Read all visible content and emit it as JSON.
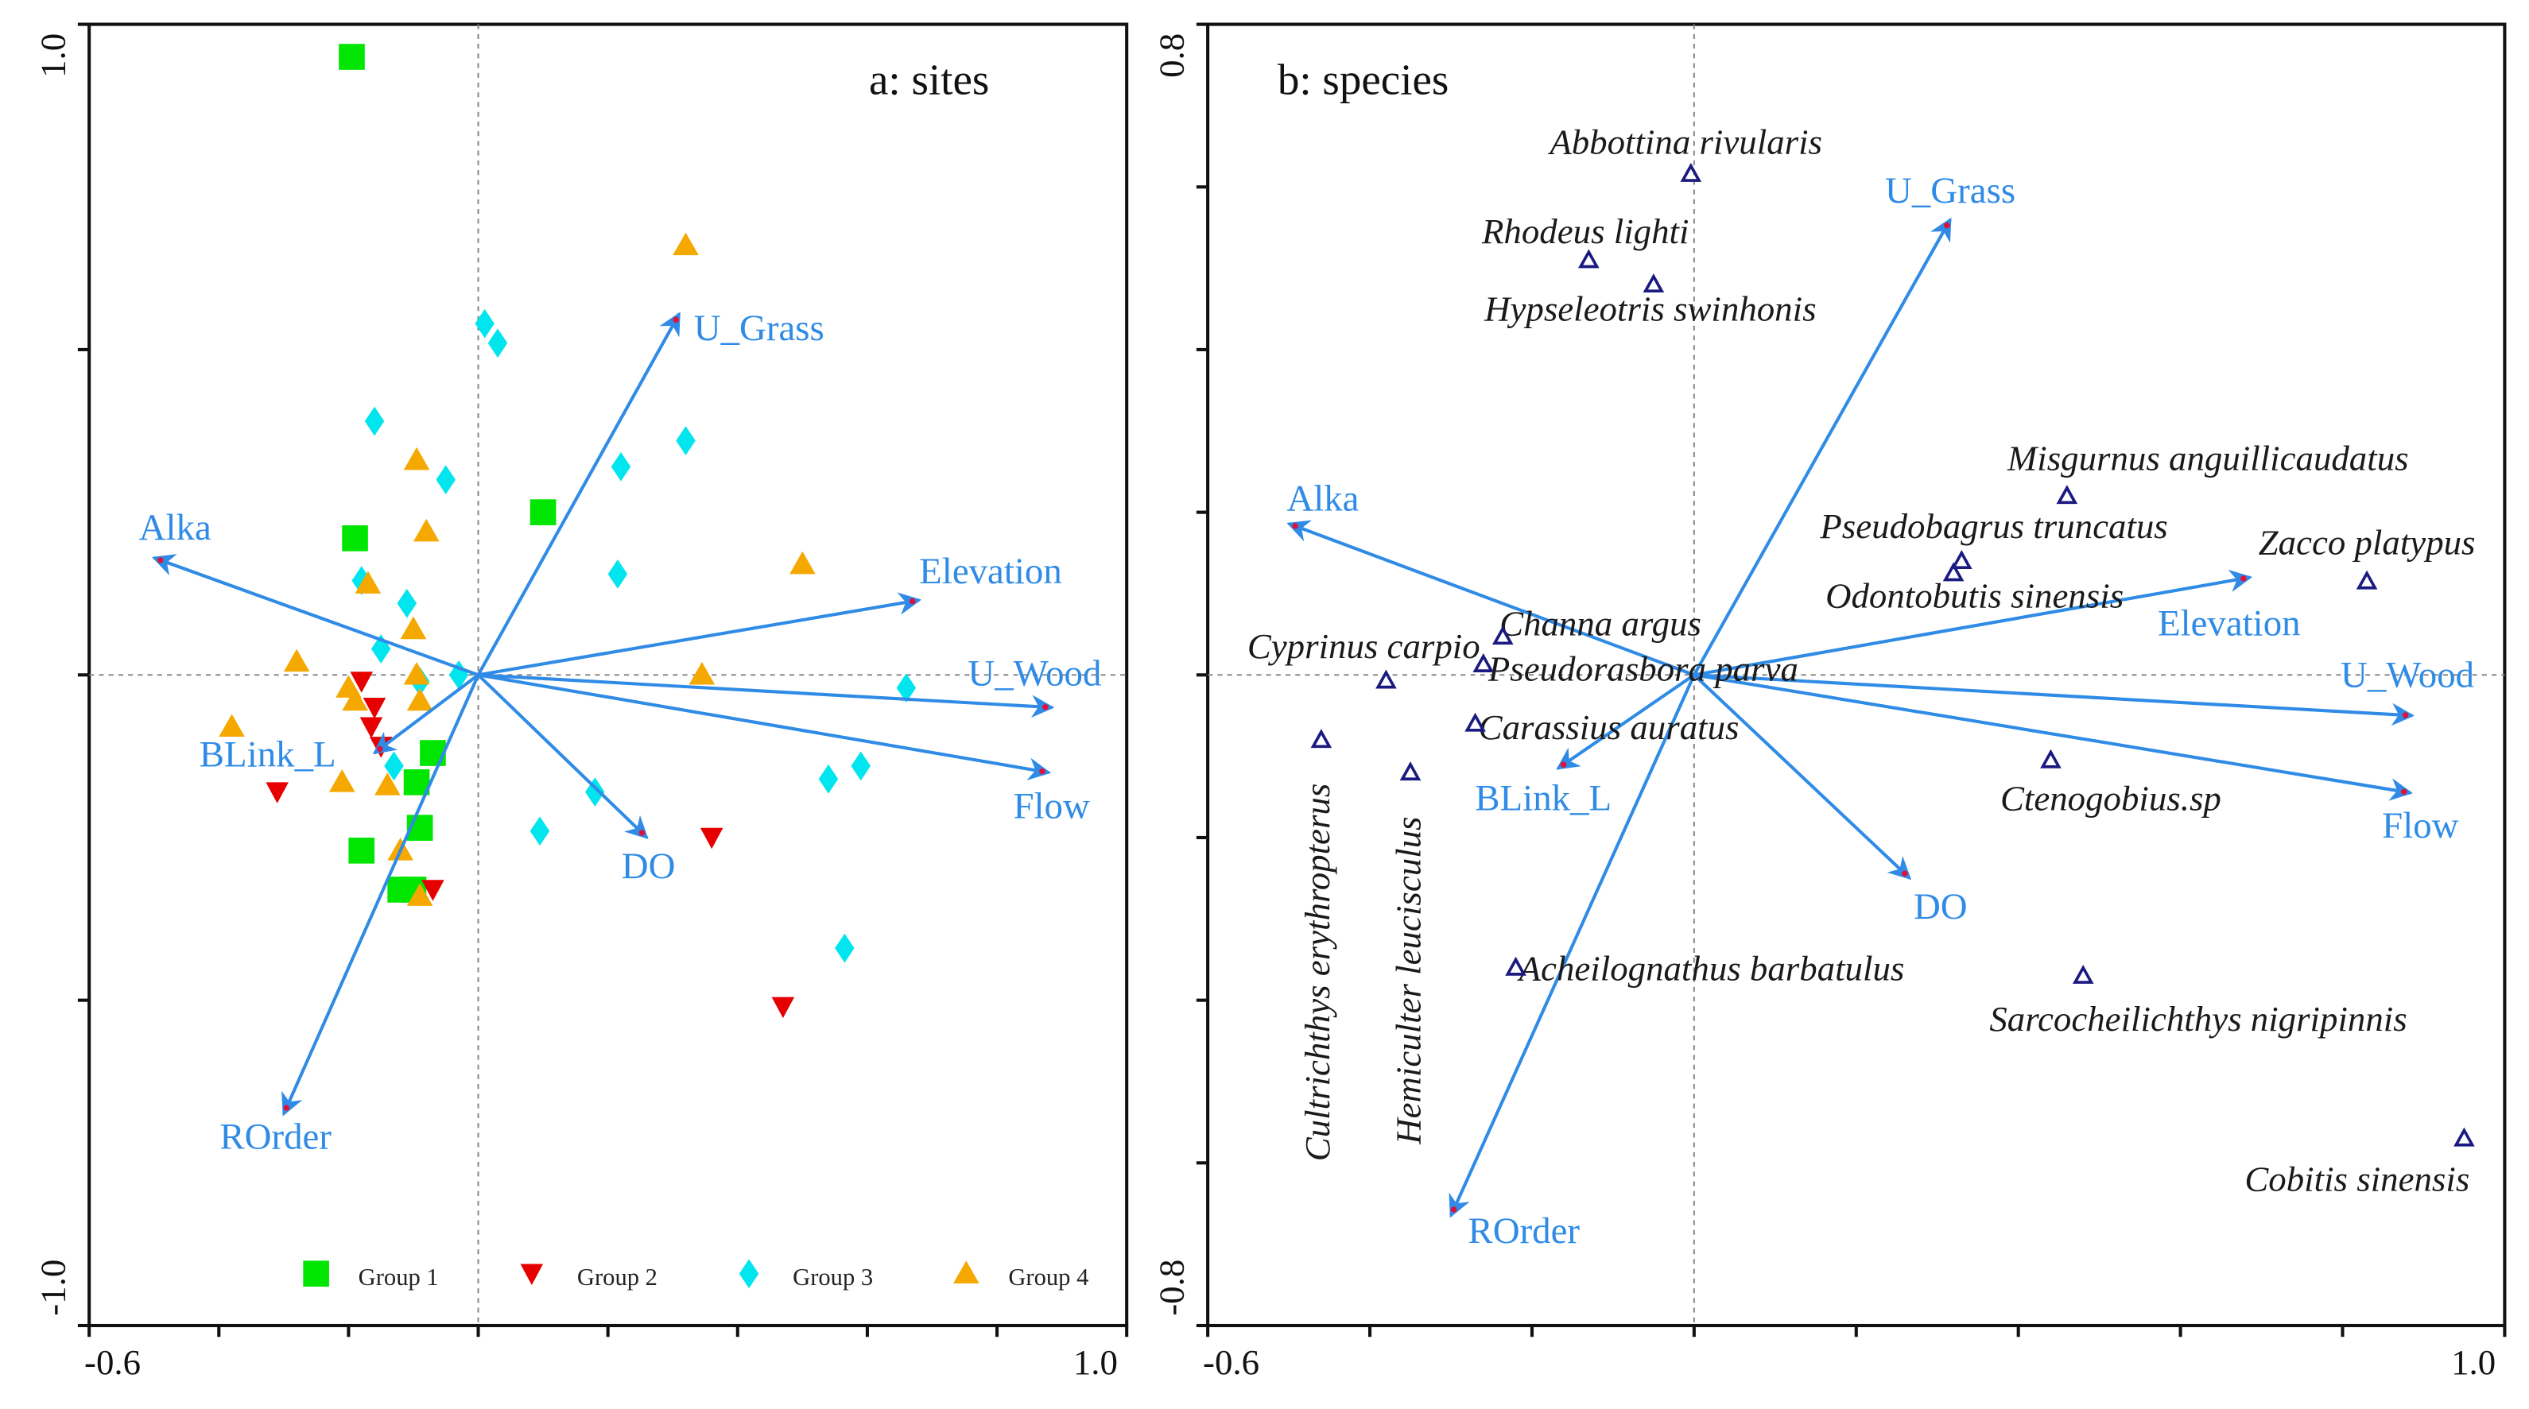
{
  "chart_data": [
    {
      "type": "scatter",
      "title": "a: sites",
      "xlim": [
        -0.6,
        1.0
      ],
      "ylim": [
        -1.0,
        1.0
      ],
      "x_tick_labels": [
        "-0.6",
        "1.0"
      ],
      "y_tick_labels": [
        "1.0",
        "-1.0"
      ],
      "legend_position": "bottom",
      "groups": [
        {
          "name": "Group 1",
          "marker": "square",
          "color": "#00e600",
          "points": [
            [
              -0.195,
              0.95
            ],
            [
              -0.19,
              0.21
            ],
            [
              0.1,
              0.25
            ],
            [
              -0.07,
              -0.12
            ],
            [
              -0.095,
              -0.165
            ],
            [
              -0.09,
              -0.235
            ],
            [
              -0.18,
              -0.27
            ],
            [
              -0.12,
              -0.33
            ],
            [
              -0.1,
              -0.33
            ]
          ]
        },
        {
          "name": "Group 2",
          "marker": "triangle-down",
          "color": "#e60000",
          "points": [
            [
              -0.18,
              -0.01
            ],
            [
              -0.16,
              -0.05
            ],
            [
              -0.165,
              -0.08
            ],
            [
              -0.15,
              -0.11
            ],
            [
              -0.31,
              -0.18
            ],
            [
              0.36,
              -0.25
            ],
            [
              0.47,
              -0.51
            ],
            [
              -0.07,
              -0.33
            ]
          ]
        },
        {
          "name": "Group 3",
          "marker": "diamond",
          "color": "#00e5ee",
          "points": [
            [
              0.01,
              0.54
            ],
            [
              0.03,
              0.51
            ],
            [
              -0.16,
              0.39
            ],
            [
              -0.05,
              0.3
            ],
            [
              0.22,
              0.32
            ],
            [
              0.32,
              0.36
            ],
            [
              0.215,
              0.155
            ],
            [
              -0.18,
              0.145
            ],
            [
              -0.11,
              0.11
            ],
            [
              -0.15,
              0.04
            ],
            [
              -0.03,
              0.0
            ],
            [
              -0.09,
              -0.01
            ],
            [
              -0.13,
              -0.14
            ],
            [
              0.18,
              -0.18
            ],
            [
              0.095,
              -0.24
            ],
            [
              0.66,
              -0.02
            ],
            [
              0.54,
              -0.16
            ],
            [
              0.59,
              -0.14
            ],
            [
              0.565,
              -0.42
            ]
          ]
        },
        {
          "name": "Group 4",
          "marker": "triangle-up",
          "color": "#f5a800",
          "points": [
            [
              0.32,
              0.66
            ],
            [
              -0.095,
              0.33
            ],
            [
              -0.08,
              0.22
            ],
            [
              -0.17,
              0.14
            ],
            [
              -0.1,
              0.07
            ],
            [
              -0.28,
              0.02
            ],
            [
              0.5,
              0.17
            ],
            [
              0.345,
              0.0
            ],
            [
              -0.2,
              -0.02
            ],
            [
              -0.19,
              -0.04
            ],
            [
              -0.095,
              0.0
            ],
            [
              -0.09,
              -0.04
            ],
            [
              -0.38,
              -0.08
            ],
            [
              -0.21,
              -0.165
            ],
            [
              -0.14,
              -0.17
            ],
            [
              -0.12,
              -0.27
            ],
            [
              -0.09,
              -0.34
            ]
          ]
        }
      ],
      "env_vectors": [
        {
          "name": "U_Grass",
          "x": 0.31,
          "y": 0.555
        },
        {
          "name": "Elevation",
          "x": 0.68,
          "y": 0.115
        },
        {
          "name": "U_Wood",
          "x": 0.885,
          "y": -0.05
        },
        {
          "name": "Flow",
          "x": 0.88,
          "y": -0.15
        },
        {
          "name": "DO",
          "x": 0.26,
          "y": -0.25
        },
        {
          "name": "ROrder",
          "x": -0.3,
          "y": -0.675
        },
        {
          "name": "BLink_L",
          "x": -0.16,
          "y": -0.12
        },
        {
          "name": "Alka",
          "x": -0.5,
          "y": 0.18
        }
      ],
      "vector_color": "#2f8be6"
    },
    {
      "type": "scatter",
      "title": "b: species",
      "xlim": [
        -0.6,
        1.0
      ],
      "ylim": [
        -0.8,
        0.8
      ],
      "x_tick_labels": [
        "-0.6",
        "1.0"
      ],
      "y_tick_labels": [
        "0.8",
        "-0.8"
      ],
      "marker": "open-triangle",
      "marker_color": "#1a1a80",
      "species": [
        {
          "name": "Abbottina rivularis",
          "x": -0.004,
          "y": 0.616
        },
        {
          "name": "Rhodeus lighti",
          "x": -0.13,
          "y": 0.51
        },
        {
          "name": "Hypseleotris swinhonis",
          "x": -0.05,
          "y": 0.48
        },
        {
          "name": "Misgurnus anguillicaudatus",
          "x": 0.46,
          "y": 0.22
        },
        {
          "name": "Pseudobagrus truncatus",
          "x": 0.33,
          "y": 0.14
        },
        {
          "name": "Odontobutis sinensis",
          "x": 0.32,
          "y": 0.125
        },
        {
          "name": "Zacco platypus",
          "x": 0.83,
          "y": 0.115
        },
        {
          "name": "Channa argus",
          "x": -0.236,
          "y": 0.047
        },
        {
          "name": "Pseudorasbora parva",
          "x": -0.26,
          "y": 0.013
        },
        {
          "name": "Cyprinus carpio",
          "x": -0.38,
          "y": -0.007
        },
        {
          "name": "Carassius auratus",
          "x": -0.27,
          "y": -0.06
        },
        {
          "name": "Cultrichthys erythropterus",
          "x": -0.46,
          "y": -0.08
        },
        {
          "name": "Hemiculter leucisculus",
          "x": -0.35,
          "y": -0.12
        },
        {
          "name": "Ctenogobius.sp",
          "x": 0.44,
          "y": -0.105
        },
        {
          "name": "Acheilognathus barbatulus",
          "x": -0.22,
          "y": -0.36
        },
        {
          "name": "Sarcocheilichthys nigripinnis",
          "x": 0.48,
          "y": -0.37
        },
        {
          "name": "Cobitis sinensis",
          "x": 0.95,
          "y": -0.57
        }
      ],
      "env_vectors": [
        {
          "name": "U_Grass",
          "x": 0.316,
          "y": 0.56
        },
        {
          "name": "Alka",
          "x": -0.5,
          "y": 0.186
        },
        {
          "name": "Elevation",
          "x": 0.686,
          "y": 0.12
        },
        {
          "name": "U_Wood",
          "x": 0.886,
          "y": -0.05
        },
        {
          "name": "Flow",
          "x": 0.884,
          "y": -0.145
        },
        {
          "name": "DO",
          "x": 0.266,
          "y": -0.25
        },
        {
          "name": "BLink_L",
          "x": -0.168,
          "y": -0.115
        },
        {
          "name": "ROrder",
          "x": -0.3,
          "y": -0.665
        }
      ],
      "vector_color": "#2f8be6"
    }
  ]
}
